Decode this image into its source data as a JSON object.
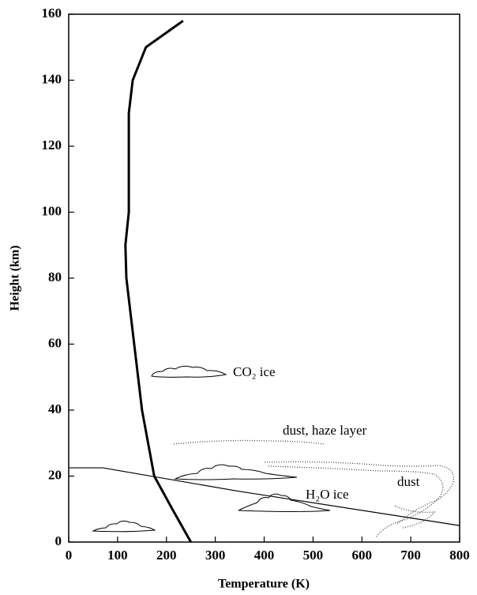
{
  "chart_data": {
    "type": "line",
    "x_label": "Temperature (K)",
    "y_label": "Height (km)",
    "xlim": [
      0,
      800
    ],
    "ylim": [
      0,
      160
    ],
    "xticks": [
      0,
      100,
      200,
      300,
      400,
      500,
      600,
      700,
      800
    ],
    "yticks": [
      0,
      20,
      40,
      60,
      80,
      100,
      120,
      140,
      160
    ],
    "grid": false,
    "series": [
      {
        "color": "#000000",
        "line_width": 3,
        "x": [
          250,
          212,
          175,
          150,
          134,
          118,
          116,
          123,
          123,
          123,
          131,
          158,
          234
        ],
        "values": [
          0,
          10,
          20,
          40,
          60,
          80,
          90,
          100,
          120,
          130,
          140,
          150,
          158
        ]
      },
      {
        "color": "#000000",
        "line_width": 1.2,
        "x": [
          0,
          70,
          344,
          800
        ],
        "values": [
          22.5,
          22.5,
          15.5,
          5
        ]
      }
    ],
    "annotations": [
      "CO₂ ice",
      "dust, haze layer",
      "H₂O ice",
      "dust"
    ]
  }
}
